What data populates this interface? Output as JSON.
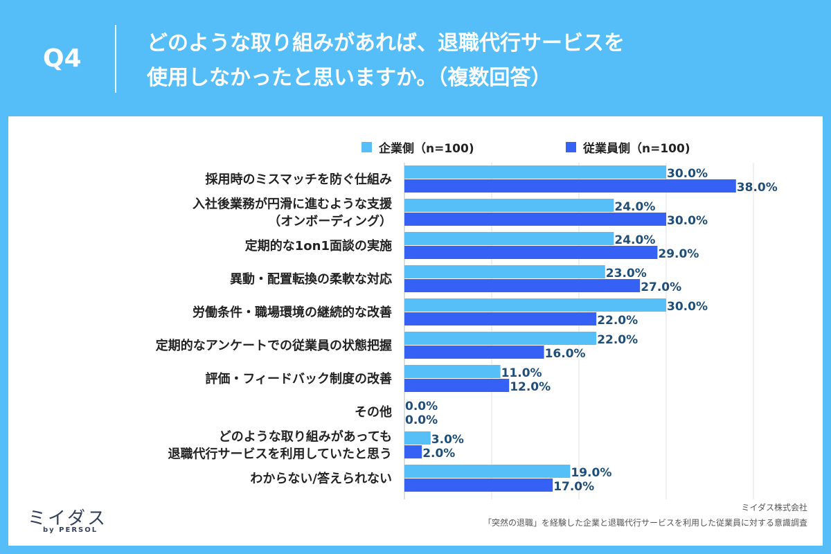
{
  "header": {
    "question_label": "Q4",
    "title_line1": "どのような取り組みがあれば、退職代行サービスを",
    "title_line2": "使用しなかったと思いますか。（複数回答）"
  },
  "colors": {
    "background": "#55bef8",
    "series_company": "#56bff8",
    "series_employee": "#3562f5",
    "value_label": "#1f4e79"
  },
  "legend": {
    "company": "企業側（n=100)",
    "employee": "従業員側（n=100)"
  },
  "chart_data": {
    "type": "bar",
    "orientation": "horizontal",
    "title": "どのような取り組みがあれば、退職代行サービスを使用しなかったと思いますか。（複数回答）",
    "xlabel": "",
    "ylabel": "",
    "xlim": [
      0,
      40
    ],
    "grid": true,
    "legend_position": "top",
    "categories": [
      [
        "採用時のミスマッチを防ぐ仕組み"
      ],
      [
        "入社後業務が円滑に進むような支援",
        "（オンボーディング）"
      ],
      [
        "定期的な1on1面談の実施"
      ],
      [
        "異動・配置転換の柔軟な対応"
      ],
      [
        "労働条件・職場環境の継続的な改善"
      ],
      [
        "定期的なアンケートでの従業員の状態把握"
      ],
      [
        "評価・フィードバック制度の改善"
      ],
      [
        "その他"
      ],
      [
        "どのような取り組みがあっても",
        "退職代行サービスを利用していたと思う"
      ],
      [
        "わからない/答えられない"
      ]
    ],
    "series": [
      {
        "name": "企業側（n=100)",
        "values": [
          30.0,
          24.0,
          24.0,
          23.0,
          30.0,
          22.0,
          11.0,
          0.0,
          3.0,
          19.0
        ],
        "labels": [
          "30.0%",
          "24.0%",
          "24.0%",
          "23.0%",
          "30.0%",
          "22.0%",
          "11.0%",
          "0.0%",
          "3.0%",
          "19.0%"
        ]
      },
      {
        "name": "従業員側（n=100)",
        "values": [
          38.0,
          30.0,
          29.0,
          27.0,
          22.0,
          16.0,
          12.0,
          0.0,
          2.0,
          17.0
        ],
        "labels": [
          "38.0%",
          "30.0%",
          "29.0%",
          "27.0%",
          "22.0%",
          "16.0%",
          "12.0%",
          "0.0%",
          "2.0%",
          "17.0%"
        ]
      }
    ]
  },
  "footer": {
    "logo": "ミイダス",
    "logo_sub": "by PERSOL",
    "company": "ミイダス株式会社",
    "source": "「突然の退職」を経験した企業と退職代行サービスを利用した従業員に対する意識調査"
  }
}
